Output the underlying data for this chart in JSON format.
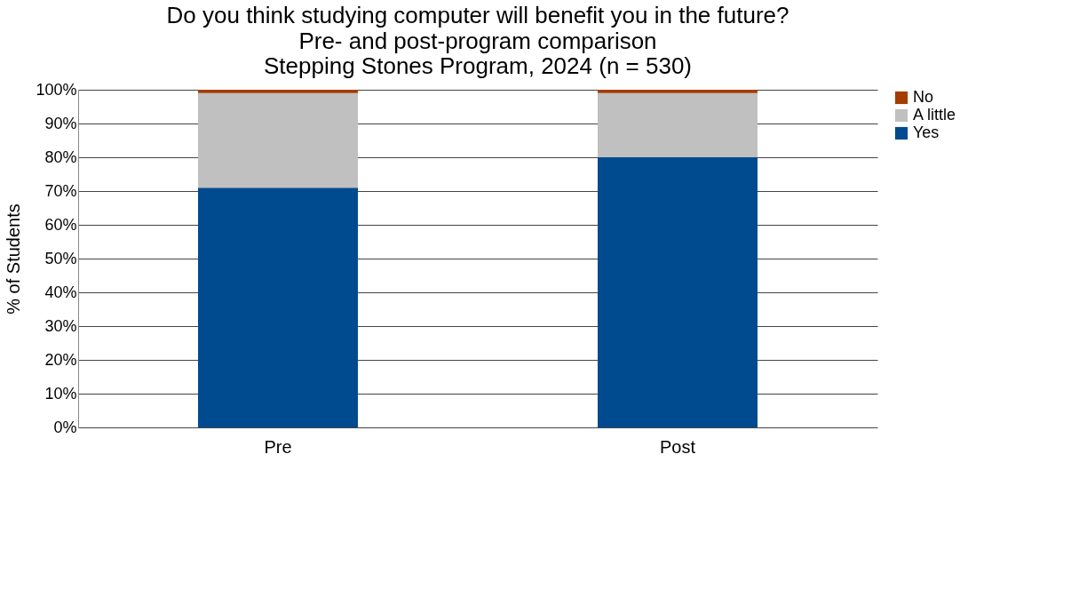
{
  "chart_data": {
    "type": "bar",
    "title": "Do you think studying computer will benefit you in the future?",
    "subtitle": "Pre- and post-program comparison\nStepping Stones Program, 2024 (n = 530)",
    "ylabel": "% of Students",
    "categories": [
      "Pre",
      "Post"
    ],
    "stacked": true,
    "series": [
      {
        "name": "Yes",
        "color": "#004a8f",
        "values": [
          71,
          80
        ]
      },
      {
        "name": "A little",
        "color": "#c0c0c0",
        "values": [
          28,
          19
        ]
      },
      {
        "name": "No",
        "color": "#a33d00",
        "values": [
          1,
          1
        ]
      }
    ],
    "ylim": [
      0,
      100
    ],
    "yticks": [
      {
        "value": 0,
        "label": "0%"
      },
      {
        "value": 10,
        "label": "10%"
      },
      {
        "value": 20,
        "label": "20%"
      },
      {
        "value": 30,
        "label": "30%"
      },
      {
        "value": 40,
        "label": "40%"
      },
      {
        "value": 50,
        "label": "50%"
      },
      {
        "value": 60,
        "label": "60%"
      },
      {
        "value": 70,
        "label": "70%"
      },
      {
        "value": 80,
        "label": "80%"
      },
      {
        "value": 90,
        "label": "90%"
      },
      {
        "value": 100,
        "label": "100%"
      }
    ],
    "grid": "y",
    "legend": "right"
  }
}
